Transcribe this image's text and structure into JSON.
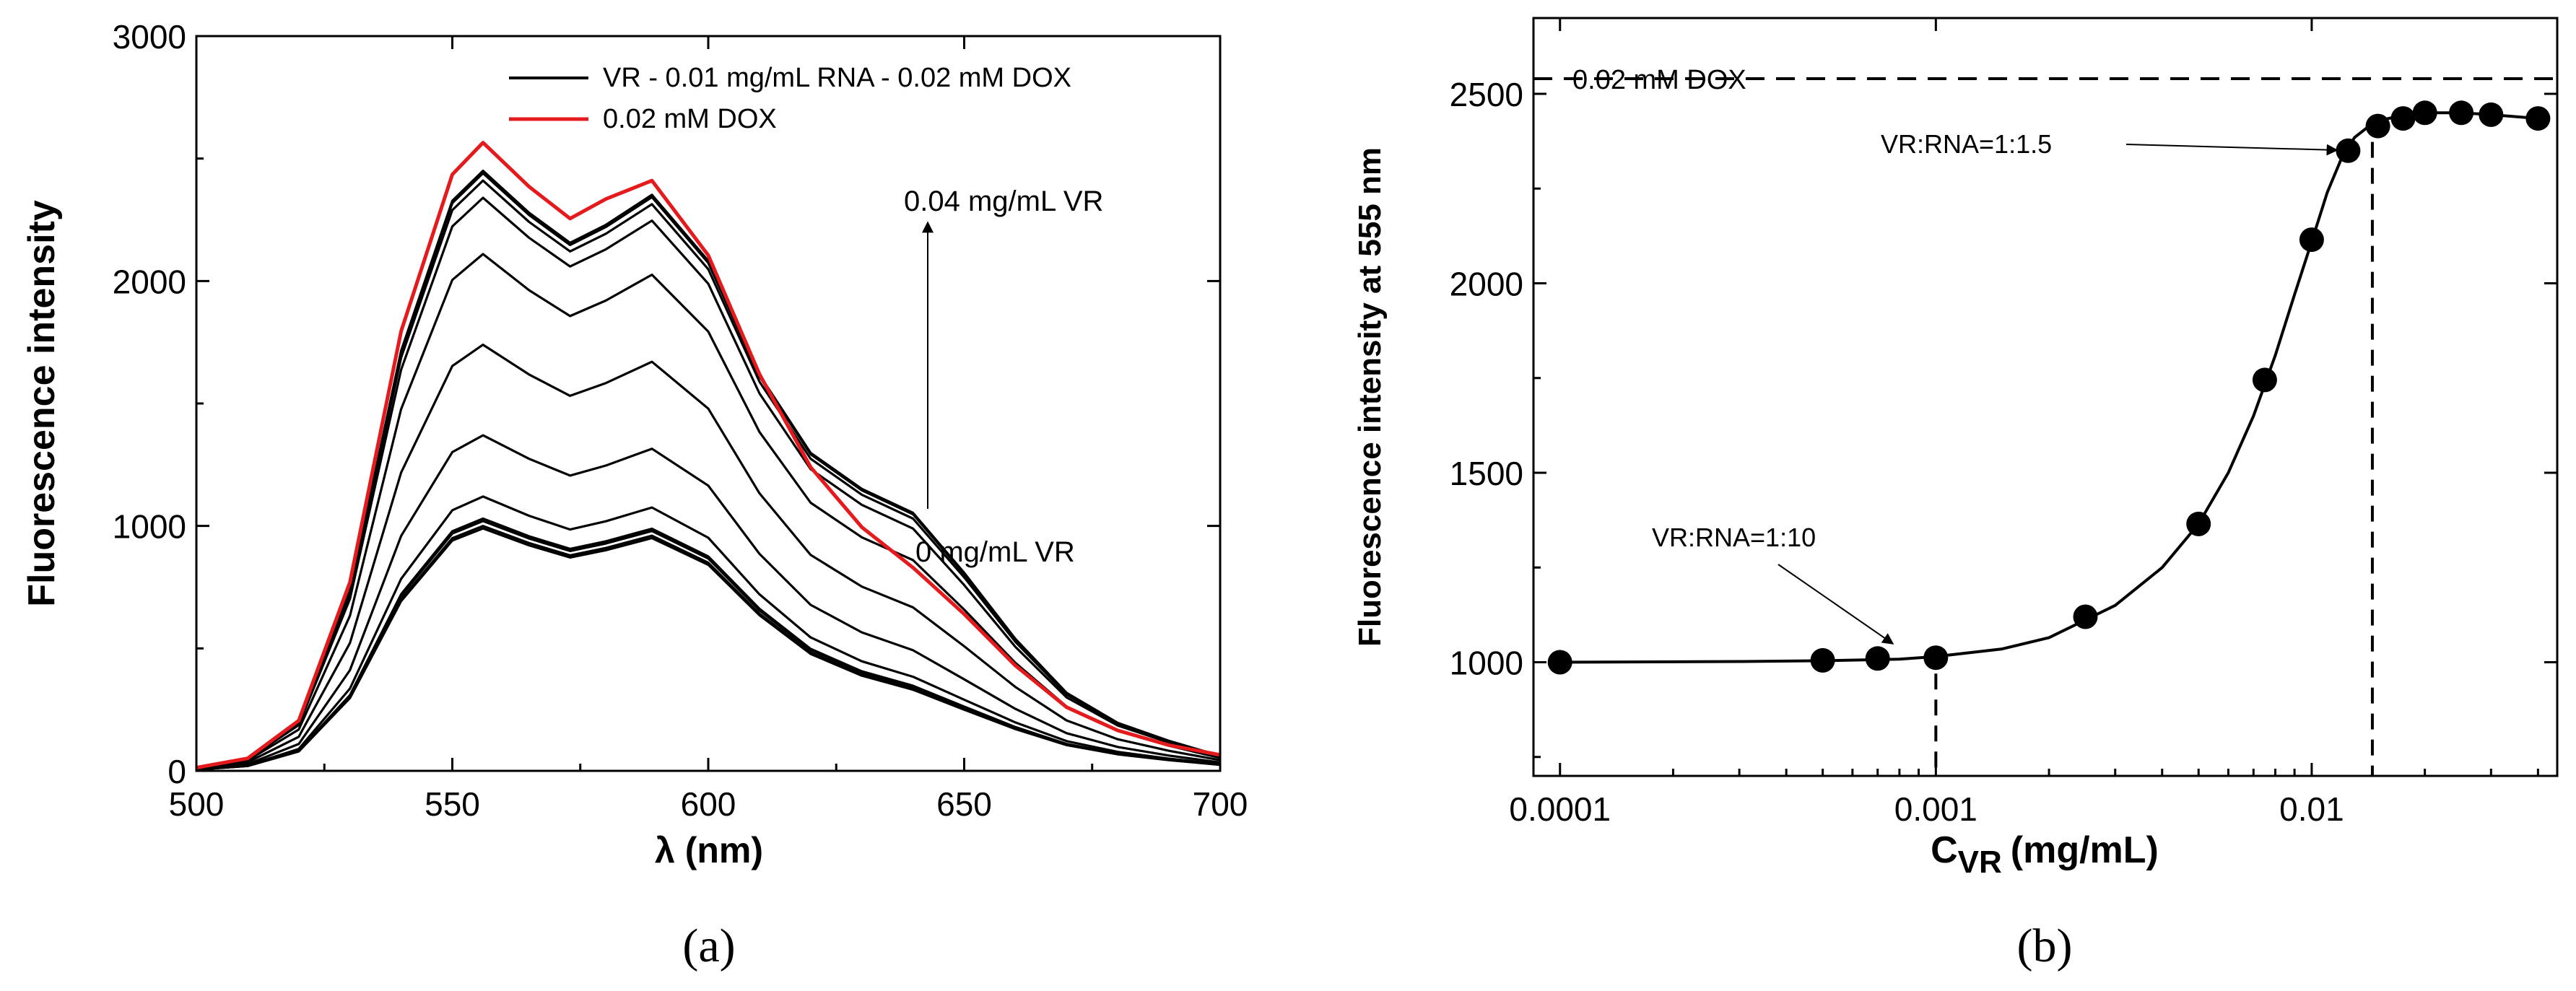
{
  "panel_a_caption": "(a)",
  "panel_b_caption": "(b)",
  "chart_data": [
    {
      "type": "line",
      "title": "",
      "xlabel": "λ (nm)",
      "ylabel": "Fluorescence intensity",
      "xlim": [
        500,
        700
      ],
      "ylim": [
        0,
        3000
      ],
      "xticks": [
        500,
        550,
        600,
        650,
        700
      ],
      "yticks": [
        0,
        1000,
        2000,
        3000
      ],
      "legend": [
        {
          "label": "VR - 0.01 mg/mL RNA - 0.02 mM DOX",
          "color": "#000000"
        },
        {
          "label": "0.02 mM DOX",
          "color": "#e41a1c"
        }
      ],
      "annotations": {
        "top": "0.04 mg/mL VR",
        "bottom": "0 mg/mL VR"
      },
      "curve_model": {
        "x": [
          500,
          510,
          520,
          530,
          540,
          550,
          556,
          565,
          573,
          580,
          589,
          600,
          610,
          620,
          630,
          640,
          650,
          660,
          670,
          680,
          690,
          700
        ],
        "baseline_shape": [
          0.005,
          0.02,
          0.08,
          0.3,
          0.7,
          0.95,
          1.0,
          0.93,
          0.88,
          0.91,
          0.96,
          0.85,
          0.63,
          0.45,
          0.34,
          0.27,
          0.2,
          0.14,
          0.09,
          0.06,
          0.04,
          0.025
        ],
        "shoulder": [
          0,
          0,
          0,
          0,
          0,
          0,
          0,
          0,
          0,
          0,
          0,
          0,
          0.03,
          0.08,
          0.13,
          0.16,
          0.13,
          0.08,
          0.04,
          0.02,
          0.01,
          0
        ],
        "peak_values": [
          990,
          1000,
          1020,
          1030,
          1120,
          1370,
          1740,
          2110,
          2340,
          2410,
          2440,
          2450
        ]
      },
      "series": [
        {
          "name": "0.02 mM DOX",
          "color": "#e41a1c",
          "x": [
            500,
            510,
            520,
            530,
            540,
            550,
            556,
            565,
            573,
            580,
            589,
            600,
            610,
            620,
            630,
            640,
            650,
            660,
            670,
            680,
            690,
            700
          ],
          "values": [
            13,
            51,
            205,
            770,
            1795,
            2435,
            2565,
            2385,
            2255,
            2335,
            2410,
            2105,
            1620,
            1240,
            995,
            830,
            640,
            430,
            260,
            165,
            105,
            65
          ]
        }
      ]
    },
    {
      "type": "scatter",
      "title": "",
      "xlabel": "C",
      "xlabel_sub": "VR",
      "xlabel_unit": "(mg/mL)",
      "ylabel": "Fluorescence intensity at 555 nm",
      "xscale": "log",
      "xlim": [
        0.0001,
        0.045
      ],
      "ylim": [
        700,
        2700
      ],
      "xticks": [
        0.0001,
        0.001,
        0.01
      ],
      "xtick_labels": [
        "0.0001",
        "0.001",
        "0.01"
      ],
      "yticks": [
        1000,
        1500,
        2000,
        2500
      ],
      "points": {
        "x": [
          0.0001,
          0.0005,
          0.0007,
          0.001,
          0.0025,
          0.005,
          0.0075,
          0.01,
          0.0125,
          0.015,
          0.0175,
          0.02,
          0.025,
          0.03,
          0.04
        ],
        "y": [
          1000,
          1005,
          1010,
          1012,
          1120,
          1365,
          1745,
          2115,
          2350,
          2415,
          2435,
          2450,
          2450,
          2445,
          2435
        ]
      },
      "fit_curve": {
        "x": [
          0.0001,
          0.0003,
          0.0005,
          0.0008,
          0.001,
          0.0015,
          0.002,
          0.003,
          0.004,
          0.005,
          0.006,
          0.007,
          0.008,
          0.009,
          0.01,
          0.011,
          0.012,
          0.013,
          0.014,
          0.015,
          0.016,
          0.018,
          0.02,
          0.025,
          0.03,
          0.04
        ],
        "y": [
          1000,
          1002,
          1004,
          1008,
          1015,
          1035,
          1065,
          1150,
          1250,
          1365,
          1500,
          1650,
          1810,
          1970,
          2110,
          2240,
          2330,
          2385,
          2410,
          2425,
          2435,
          2445,
          2450,
          2450,
          2445,
          2435
        ]
      },
      "reference_line": {
        "y": 2540,
        "label": "0.02 mM DOX"
      },
      "vertical_markers": [
        0.001,
        0.0145
      ],
      "annotations": [
        {
          "text": "VR:RNA=1:1.5",
          "x": 0.0145,
          "y": 2415
        },
        {
          "text": "VR:RNA=1:10",
          "x": 0.001,
          "y": 1012
        }
      ]
    }
  ]
}
